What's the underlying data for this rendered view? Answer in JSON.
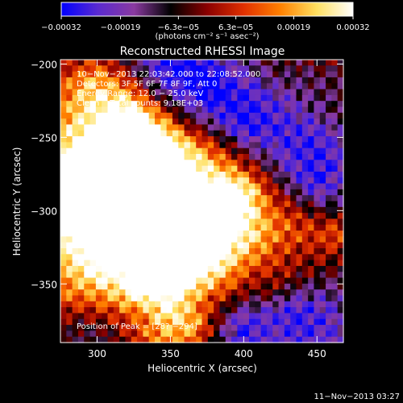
{
  "chart_data": {
    "type": "heatmap",
    "title": "Reconstructed RHESSI Image",
    "xlabel": "Heliocentric X (arcsec)",
    "ylabel": "Heliocentric Y (arcsec)",
    "xlim": [
      275,
      468
    ],
    "ylim": [
      -390,
      -197
    ],
    "x_ticks": [
      300,
      350,
      400,
      450
    ],
    "y_ticks": [
      -200,
      -250,
      -300,
      -350
    ],
    "x_tick_labels": [
      "300",
      "350",
      "400",
      "450"
    ],
    "y_tick_labels": [
      "−200",
      "−250",
      "−300",
      "−350"
    ],
    "colorbar": {
      "min": -0.00032,
      "max": 0.00032,
      "tick_values": [
        -0.00032,
        -0.00019,
        -6.3e-05,
        6.3e-05,
        0.00019,
        0.00032
      ],
      "tick_labels": [
        "−0.00032",
        "−0.00019",
        "−6.3e−05",
        "6.3e−05",
        "0.00019",
        "0.00032"
      ],
      "unit_label": "(photons cm⁻² s⁻¹ asec⁻²)",
      "colors": [
        "#0000ff",
        "#5a2ad0",
        "#8a3aa0",
        "#000000",
        "#8b0000",
        "#e03000",
        "#ff8000",
        "#ffe060",
        "#ffffff"
      ]
    },
    "annotations": {
      "time_range": "10−Nov−2013 22:03:42.000 to 22:08:52.000",
      "detectors": "Detectors: 3F 5F 6F 7F 8F 9F, Att 0",
      "energy": "Energy Range: 12.0 − 25.0 keV",
      "clean": "Clean    Total counts: 9.18E+03",
      "peak": "Position of Peak = [28? −294]"
    },
    "peak_position": [
      282,
      -294
    ],
    "image_grid": {
      "x_range": [
        275,
        468
      ],
      "y_range": [
        -390,
        -197
      ],
      "nx": 48,
      "ny": 48
    },
    "footer": "11−Nov−2013 03:27"
  }
}
